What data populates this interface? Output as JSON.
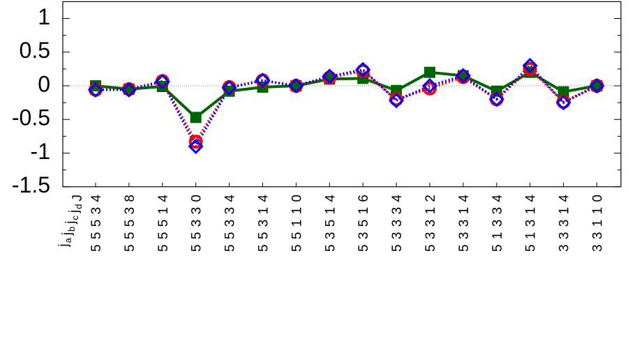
{
  "chart_data": {
    "type": "line",
    "xlabel_parts": [
      {
        "base": "j",
        "sub": "a"
      },
      {
        "base": "j",
        "sub": "b"
      },
      {
        "base": "j",
        "sub": "c"
      },
      {
        "base": "j",
        "sub": "d"
      },
      {
        "base": "J"
      }
    ],
    "categories": [
      "5 5 5 3 4",
      "5 5 5 3 8",
      "5 5 5 1 4",
      "5 5 3 3 0",
      "5 5 3 3 4",
      "5 5 3 1 4",
      "5 5 1 1 0",
      "5 3 5 1 4",
      "5 3 5 1 6",
      "5 3 3 3 4",
      "5 3 3 1 2",
      "5 3 3 1 4",
      "5 1 3 3 4",
      "5 1 3 1 4",
      "3 3 3 1 4",
      "3 3 1 1 0"
    ],
    "series": [
      {
        "color": "#006400",
        "marker": "square",
        "line": "solid",
        "values": [
          0,
          -0.05,
          -0.01,
          -0.47,
          -0.08,
          -0.02,
          0,
          0.1,
          0.11,
          -0.07,
          0.2,
          0.15,
          -0.08,
          0.2,
          -0.09,
          0
        ]
      },
      {
        "color": "#ff0000",
        "marker": "circle",
        "line": "dotted",
        "values": [
          -0.06,
          -0.05,
          0.07,
          -0.83,
          -0.02,
          0.08,
          0,
          0.12,
          0.22,
          -0.2,
          -0.04,
          0.13,
          -0.2,
          0.25,
          -0.24,
          0
        ]
      },
      {
        "color": "#0000ff",
        "marker": "diamond",
        "line": "dotted",
        "values": [
          -0.06,
          -0.06,
          0.06,
          -0.9,
          -0.03,
          0.08,
          0,
          0.14,
          0.24,
          -0.22,
          0,
          0.15,
          -0.2,
          0.3,
          -0.25,
          0
        ]
      }
    ],
    "ylim": [
      -1.5,
      1.25
    ],
    "yticks": [
      -1.5,
      -1,
      -0.5,
      0,
      0.5,
      1
    ],
    "yminorticks": [
      -1.25,
      -0.75,
      -0.25,
      0.25,
      0.75
    ],
    "zero_line": true
  }
}
